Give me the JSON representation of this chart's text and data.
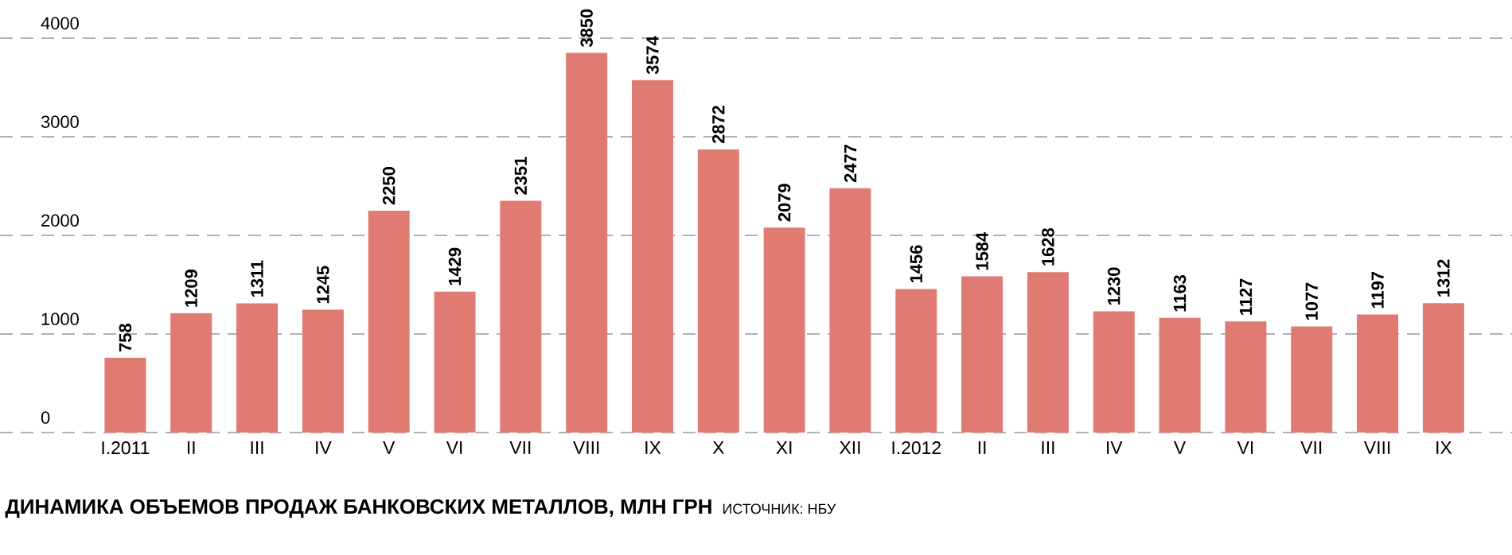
{
  "chart_data": {
    "type": "bar",
    "title": "ДИНАМИКА ОБЪЕМОВ ПРОДАЖ БАНКОВСКИХ МЕТАЛЛОВ, МЛН ГРН",
    "annotations": [
      "ИСТОЧНИК: НБУ"
    ],
    "categories": [
      "I.2011",
      "II",
      "III",
      "IV",
      "V",
      "VI",
      "VII",
      "VIII",
      "IX",
      "X",
      "XI",
      "XII",
      "I.2012",
      "II",
      "III",
      "IV",
      "V",
      "VI",
      "VII",
      "VIII",
      "IX"
    ],
    "values": [
      758,
      1209,
      1311,
      1245,
      2250,
      1429,
      2351,
      3850,
      3574,
      2872,
      2079,
      2477,
      1456,
      1584,
      1628,
      1230,
      1163,
      1127,
      1077,
      1197,
      1312
    ],
    "color": "#e07b74",
    "ylim": [
      0,
      4000
    ],
    "yticks": [
      0,
      1000,
      2000,
      3000,
      4000
    ],
    "grid": "y",
    "data_labels": true
  }
}
